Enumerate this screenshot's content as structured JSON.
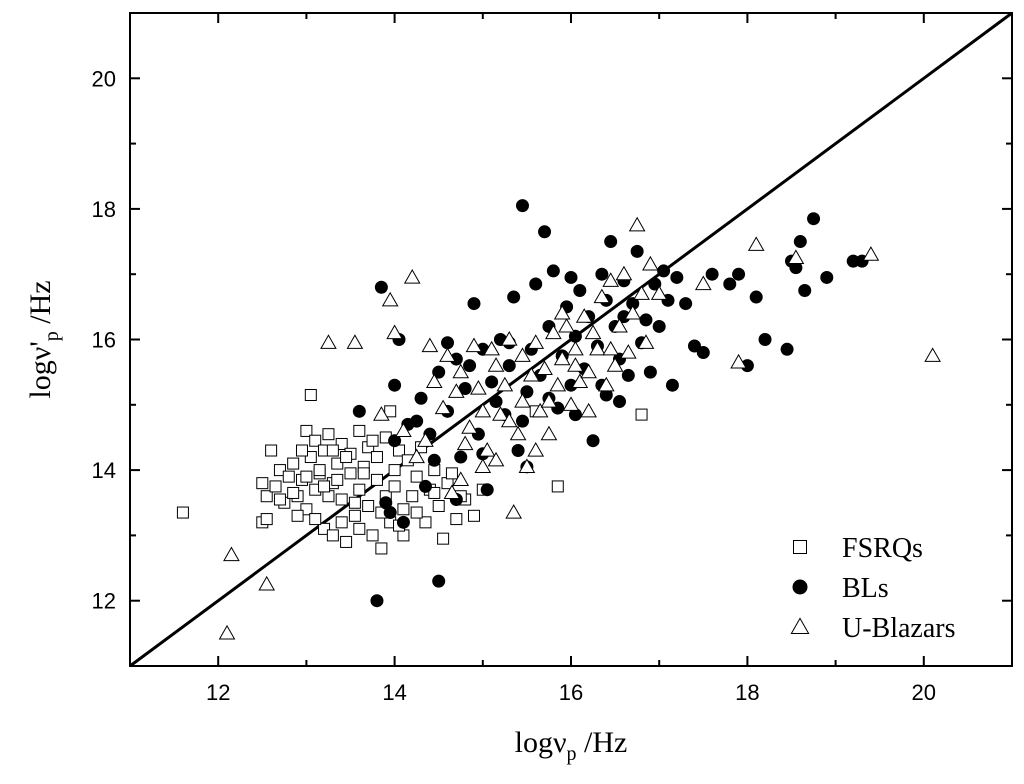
{
  "chart_data": {
    "type": "scatter",
    "xlabel": "logν_p /Hz",
    "ylabel": "logν'_p /Hz",
    "xlabel_parts": {
      "base": "logν",
      "sub": "p",
      "suffix": " /Hz"
    },
    "ylabel_parts": {
      "base": "logν'",
      "sub": "p",
      "suffix": " /Hz"
    },
    "xlim": [
      11,
      21
    ],
    "ylim": [
      11,
      21
    ],
    "xticks": [
      12,
      14,
      16,
      18,
      20
    ],
    "yticks": [
      12,
      14,
      16,
      18,
      20
    ],
    "grid": false,
    "legend_position": "bottom-right",
    "reference_line": {
      "type": "y=x",
      "from": [
        11,
        11
      ],
      "to": [
        21,
        21
      ]
    },
    "series": [
      {
        "name": "FSRQs",
        "marker": "open-square",
        "points": [
          [
            11.6,
            13.35
          ],
          [
            12.5,
            13.2
          ],
          [
            12.55,
            13.25
          ],
          [
            12.5,
            13.8
          ],
          [
            12.55,
            13.6
          ],
          [
            12.6,
            14.3
          ],
          [
            12.65,
            13.75
          ],
          [
            12.7,
            14.0
          ],
          [
            12.75,
            13.5
          ],
          [
            12.8,
            13.9
          ],
          [
            12.85,
            14.1
          ],
          [
            12.9,
            13.6
          ],
          [
            12.95,
            13.85
          ],
          [
            13.0,
            14.6
          ],
          [
            13.0,
            13.4
          ],
          [
            13.05,
            14.2
          ],
          [
            13.1,
            13.7
          ],
          [
            13.1,
            14.45
          ],
          [
            13.15,
            13.95
          ],
          [
            13.2,
            14.3
          ],
          [
            13.2,
            13.1
          ],
          [
            13.25,
            14.55
          ],
          [
            13.3,
            13.8
          ],
          [
            13.3,
            13.0
          ],
          [
            13.35,
            14.1
          ],
          [
            13.4,
            13.55
          ],
          [
            13.4,
            14.4
          ],
          [
            13.45,
            12.9
          ],
          [
            13.5,
            13.95
          ],
          [
            13.5,
            14.25
          ],
          [
            13.55,
            13.3
          ],
          [
            13.6,
            14.6
          ],
          [
            13.6,
            13.7
          ],
          [
            13.65,
            14.05
          ],
          [
            13.7,
            13.45
          ],
          [
            13.7,
            14.35
          ],
          [
            13.75,
            13.0
          ],
          [
            13.8,
            13.85
          ],
          [
            13.8,
            14.2
          ],
          [
            13.85,
            12.8
          ],
          [
            13.9,
            13.6
          ],
          [
            13.9,
            14.5
          ],
          [
            13.95,
            13.2
          ],
          [
            14.0,
            14.0
          ],
          [
            14.0,
            13.75
          ],
          [
            14.05,
            14.3
          ],
          [
            14.1,
            13.4
          ],
          [
            14.1,
            13.0
          ],
          [
            14.15,
            14.15
          ],
          [
            14.2,
            13.6
          ],
          [
            14.25,
            13.9
          ],
          [
            14.3,
            14.35
          ],
          [
            14.35,
            13.2
          ],
          [
            14.4,
            13.7
          ],
          [
            14.45,
            14.0
          ],
          [
            14.5,
            13.45
          ],
          [
            14.55,
            12.95
          ],
          [
            14.6,
            13.8
          ],
          [
            14.7,
            13.25
          ],
          [
            14.8,
            13.55
          ],
          [
            14.9,
            13.3
          ],
          [
            15.0,
            13.7
          ],
          [
            13.05,
            15.15
          ],
          [
            13.95,
            14.9
          ],
          [
            15.6,
            14.9
          ],
          [
            15.85,
            13.75
          ],
          [
            16.8,
            14.85
          ],
          [
            13.15,
            14.0
          ],
          [
            13.25,
            13.6
          ],
          [
            13.35,
            13.85
          ],
          [
            13.45,
            14.2
          ],
          [
            13.55,
            13.5
          ],
          [
            13.65,
            13.95
          ],
          [
            13.75,
            14.45
          ],
          [
            13.85,
            13.35
          ],
          [
            12.9,
            13.3
          ],
          [
            12.95,
            14.3
          ],
          [
            13.1,
            13.25
          ],
          [
            13.2,
            13.75
          ],
          [
            13.4,
            13.2
          ],
          [
            13.6,
            13.1
          ],
          [
            14.05,
            13.15
          ],
          [
            14.25,
            13.35
          ],
          [
            14.45,
            13.65
          ],
          [
            14.65,
            13.95
          ],
          [
            14.75,
            13.6
          ],
          [
            12.7,
            13.55
          ],
          [
            12.85,
            13.65
          ],
          [
            13.0,
            13.9
          ],
          [
            13.3,
            14.3
          ]
        ]
      },
      {
        "name": "BLs",
        "marker": "filled-circle",
        "points": [
          [
            13.8,
            12.0
          ],
          [
            14.5,
            12.3
          ],
          [
            13.85,
            16.8
          ],
          [
            14.05,
            16.0
          ],
          [
            14.0,
            15.3
          ],
          [
            14.0,
            14.45
          ],
          [
            14.1,
            13.2
          ],
          [
            13.9,
            13.5
          ],
          [
            14.15,
            14.7
          ],
          [
            14.3,
            15.1
          ],
          [
            14.4,
            14.55
          ],
          [
            14.5,
            15.5
          ],
          [
            14.6,
            14.9
          ],
          [
            14.7,
            15.7
          ],
          [
            14.75,
            14.2
          ],
          [
            14.8,
            15.25
          ],
          [
            14.9,
            16.55
          ],
          [
            14.95,
            14.55
          ],
          [
            15.0,
            15.85
          ],
          [
            15.05,
            13.7
          ],
          [
            15.1,
            15.35
          ],
          [
            15.2,
            16.0
          ],
          [
            15.25,
            14.85
          ],
          [
            15.3,
            15.6
          ],
          [
            15.35,
            16.65
          ],
          [
            15.4,
            14.3
          ],
          [
            15.45,
            18.05
          ],
          [
            15.5,
            15.2
          ],
          [
            15.55,
            15.85
          ],
          [
            15.6,
            16.85
          ],
          [
            15.65,
            15.45
          ],
          [
            15.7,
            17.65
          ],
          [
            15.75,
            16.2
          ],
          [
            15.8,
            17.05
          ],
          [
            15.85,
            14.95
          ],
          [
            15.9,
            15.75
          ],
          [
            15.95,
            16.5
          ],
          [
            16.0,
            15.3
          ],
          [
            16.05,
            16.05
          ],
          [
            16.1,
            16.75
          ],
          [
            16.15,
            15.55
          ],
          [
            16.2,
            16.35
          ],
          [
            16.25,
            14.45
          ],
          [
            16.3,
            15.9
          ],
          [
            16.35,
            17.0
          ],
          [
            16.4,
            15.15
          ],
          [
            16.45,
            17.5
          ],
          [
            16.5,
            16.2
          ],
          [
            16.55,
            15.7
          ],
          [
            16.6,
            16.9
          ],
          [
            16.65,
            15.45
          ],
          [
            16.7,
            16.55
          ],
          [
            16.75,
            17.35
          ],
          [
            16.8,
            15.95
          ],
          [
            16.85,
            16.3
          ],
          [
            16.9,
            15.5
          ],
          [
            16.95,
            16.85
          ],
          [
            17.0,
            16.2
          ],
          [
            17.05,
            17.05
          ],
          [
            17.1,
            16.6
          ],
          [
            17.15,
            15.3
          ],
          [
            17.2,
            16.95
          ],
          [
            17.3,
            16.55
          ],
          [
            17.4,
            15.9
          ],
          [
            17.5,
            15.8
          ],
          [
            17.6,
            17.0
          ],
          [
            17.8,
            16.85
          ],
          [
            17.9,
            17.0
          ],
          [
            18.0,
            15.6
          ],
          [
            18.1,
            16.65
          ],
          [
            18.2,
            16.0
          ],
          [
            18.45,
            15.85
          ],
          [
            18.5,
            17.2
          ],
          [
            18.55,
            17.1
          ],
          [
            18.6,
            17.5
          ],
          [
            18.65,
            16.75
          ],
          [
            18.75,
            17.85
          ],
          [
            18.9,
            16.95
          ],
          [
            19.2,
            17.2
          ],
          [
            19.3,
            17.2
          ],
          [
            14.6,
            15.95
          ],
          [
            14.85,
            15.6
          ],
          [
            15.15,
            15.05
          ],
          [
            15.45,
            14.75
          ],
          [
            15.75,
            15.1
          ],
          [
            16.05,
            14.85
          ],
          [
            16.35,
            15.3
          ],
          [
            16.55,
            15.05
          ],
          [
            14.45,
            14.15
          ],
          [
            14.25,
            14.75
          ],
          [
            13.6,
            14.9
          ],
          [
            13.95,
            13.35
          ],
          [
            14.35,
            13.75
          ],
          [
            14.7,
            13.55
          ],
          [
            15.0,
            14.25
          ],
          [
            15.3,
            15.95
          ],
          [
            15.5,
            14.05
          ],
          [
            16.0,
            16.95
          ],
          [
            16.4,
            16.6
          ],
          [
            16.6,
            16.35
          ]
        ]
      },
      {
        "name": "U-Blazars",
        "marker": "open-triangle",
        "points": [
          [
            12.1,
            11.5
          ],
          [
            12.15,
            12.7
          ],
          [
            12.55,
            12.25
          ],
          [
            13.25,
            15.95
          ],
          [
            13.55,
            15.95
          ],
          [
            13.95,
            16.6
          ],
          [
            14.0,
            16.1
          ],
          [
            14.2,
            16.95
          ],
          [
            14.4,
            15.9
          ],
          [
            14.45,
            15.35
          ],
          [
            14.6,
            15.75
          ],
          [
            14.7,
            15.2
          ],
          [
            14.75,
            15.5
          ],
          [
            14.8,
            14.4
          ],
          [
            14.9,
            15.9
          ],
          [
            14.95,
            15.25
          ],
          [
            15.0,
            14.9
          ],
          [
            15.05,
            14.3
          ],
          [
            15.1,
            15.85
          ],
          [
            15.15,
            15.6
          ],
          [
            15.2,
            14.85
          ],
          [
            15.25,
            15.3
          ],
          [
            15.3,
            16.0
          ],
          [
            15.35,
            13.35
          ],
          [
            15.4,
            14.55
          ],
          [
            15.45,
            15.75
          ],
          [
            15.5,
            14.05
          ],
          [
            15.55,
            15.45
          ],
          [
            15.6,
            15.95
          ],
          [
            15.65,
            14.9
          ],
          [
            15.7,
            15.55
          ],
          [
            15.75,
            14.55
          ],
          [
            15.8,
            16.1
          ],
          [
            15.85,
            15.3
          ],
          [
            15.9,
            15.7
          ],
          [
            15.95,
            16.2
          ],
          [
            16.0,
            15.0
          ],
          [
            16.05,
            15.85
          ],
          [
            16.1,
            15.35
          ],
          [
            16.15,
            16.35
          ],
          [
            16.2,
            15.5
          ],
          [
            16.25,
            16.1
          ],
          [
            16.3,
            15.85
          ],
          [
            16.35,
            16.65
          ],
          [
            16.4,
            15.3
          ],
          [
            16.45,
            16.9
          ],
          [
            16.5,
            15.6
          ],
          [
            16.55,
            16.2
          ],
          [
            16.6,
            17.0
          ],
          [
            16.65,
            15.8
          ],
          [
            16.7,
            16.4
          ],
          [
            16.75,
            17.75
          ],
          [
            16.8,
            16.7
          ],
          [
            16.85,
            15.95
          ],
          [
            16.9,
            17.15
          ],
          [
            17.0,
            16.7
          ],
          [
            17.5,
            16.85
          ],
          [
            17.9,
            15.65
          ],
          [
            18.1,
            17.45
          ],
          [
            18.55,
            17.25
          ],
          [
            19.4,
            17.3
          ],
          [
            20.1,
            15.75
          ],
          [
            14.85,
            14.65
          ],
          [
            15.15,
            14.15
          ],
          [
            15.45,
            15.05
          ],
          [
            15.75,
            15.05
          ],
          [
            16.05,
            15.6
          ],
          [
            14.55,
            14.95
          ],
          [
            14.35,
            14.45
          ],
          [
            14.65,
            13.65
          ],
          [
            15.0,
            14.05
          ],
          [
            15.3,
            14.75
          ],
          [
            15.6,
            14.3
          ],
          [
            15.9,
            16.4
          ],
          [
            16.2,
            14.9
          ],
          [
            16.45,
            15.85
          ],
          [
            14.25,
            14.2
          ],
          [
            14.1,
            14.6
          ],
          [
            13.85,
            14.85
          ],
          [
            14.75,
            13.85
          ]
        ]
      }
    ]
  }
}
